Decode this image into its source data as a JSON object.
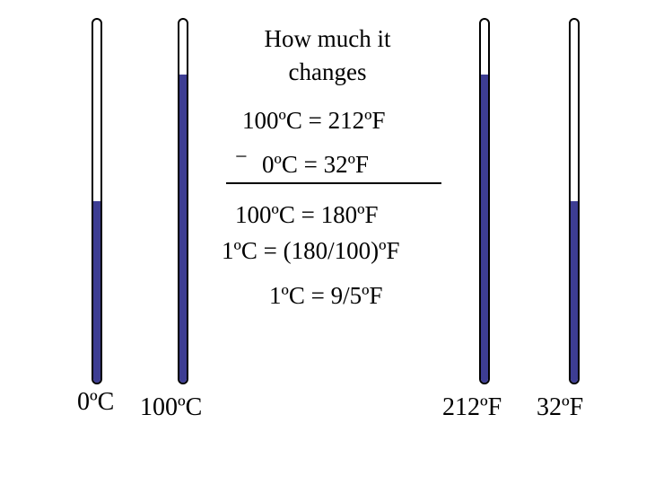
{
  "heading": {
    "line1": "How  much it",
    "line2": "changes"
  },
  "equations": {
    "top": "100ºC = 212ºF",
    "minus": "−",
    "second": "0ºC = 32ºF",
    "result": "100ºC = 180ºF",
    "ratio": "1ºC = (180/100)ºF",
    "simplified": "1ºC = 9/5ºF"
  },
  "thermometers": [
    {
      "label": "0ºC",
      "level": 0.5
    },
    {
      "label": "100ºC",
      "level": 0.85
    },
    {
      "label": "212ºF",
      "level": 0.85
    },
    {
      "label": "32ºF",
      "level": 0.5
    }
  ],
  "colors": {
    "mercury": "#3d3d93",
    "outline": "#000000",
    "tube": "#ffffff"
  }
}
